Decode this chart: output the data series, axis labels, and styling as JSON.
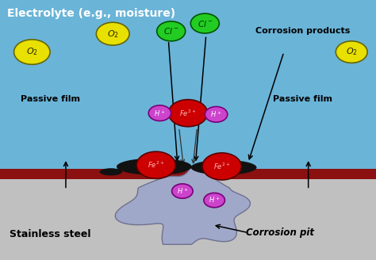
{
  "bg_electrolyte": "#6ab4d8",
  "bg_steel": "#c0c0c0",
  "bg_darkred_stripe": "#8b1010",
  "pit_fill": "#9fa8c8",
  "pit_outline": "#707090",
  "corrosion_lump_color": "#111111",
  "O2_color": "#e8e000",
  "O2_outline": "#666600",
  "Cl_color": "#22cc22",
  "Cl_outline": "#005500",
  "Fe_color": "#cc0000",
  "Fe_outline": "#550000",
  "H_color": "#cc44cc",
  "H_outline": "#770077",
  "title_label": "Electrolyte (e.g., moisture)",
  "steel_label": "Stainless steel",
  "passive_film_label": "Passive film",
  "corrosion_products_label": "Corrosion products",
  "corrosion_pit_label": "Corrosion pit",
  "figw": 4.74,
  "figh": 3.28,
  "dpi": 100
}
